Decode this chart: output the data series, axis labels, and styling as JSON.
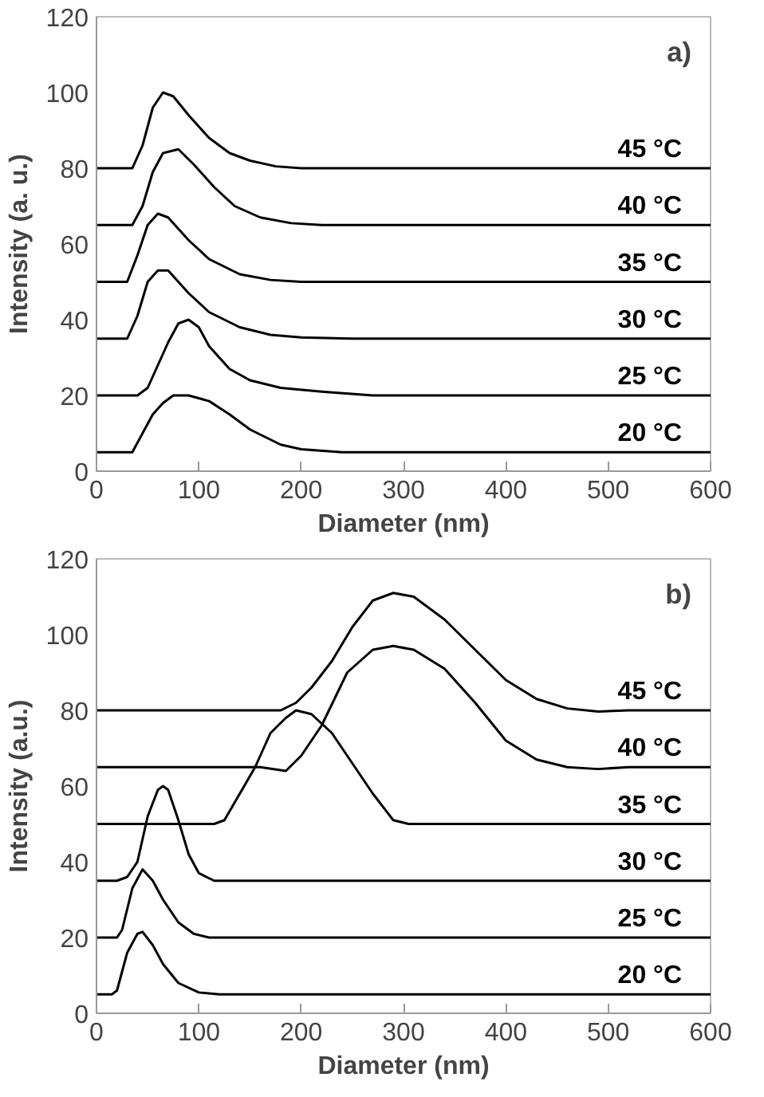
{
  "chart_data": [
    {
      "type": "line",
      "xlabel": "Diameter (nm)",
      "ylabel": "Intensity (a. u.)",
      "annotations": [
        "a)"
      ],
      "xlim": [
        0,
        600
      ],
      "ylim": [
        0,
        120
      ],
      "xticks": [
        0,
        100,
        200,
        300,
        400,
        500,
        600
      ],
      "yticks": [
        0,
        20,
        40,
        60,
        80,
        100,
        120
      ],
      "grid": false,
      "marker": "none",
      "line_style": "solid",
      "series": [
        {
          "name": "45 °C",
          "color": "#000000",
          "x": [
            0,
            35,
            45,
            55,
            65,
            75,
            90,
            110,
            130,
            150,
            175,
            200,
            600
          ],
          "values": [
            80,
            80,
            86,
            96,
            100,
            99,
            94,
            88,
            84,
            82,
            80.5,
            80,
            80
          ]
        },
        {
          "name": "40 °C",
          "color": "#000000",
          "x": [
            0,
            35,
            45,
            55,
            65,
            80,
            95,
            115,
            135,
            160,
            190,
            220,
            600
          ],
          "values": [
            65,
            65,
            70,
            79,
            84,
            85,
            81,
            75,
            70,
            67,
            65.5,
            65,
            65
          ]
        },
        {
          "name": "35 °C",
          "color": "#000000",
          "x": [
            0,
            30,
            40,
            50,
            60,
            70,
            90,
            110,
            140,
            170,
            200,
            600
          ],
          "values": [
            50,
            50,
            57,
            65,
            68,
            67,
            61,
            56,
            52,
            50.5,
            50,
            50
          ]
        },
        {
          "name": "30 °C",
          "color": "#000000",
          "x": [
            0,
            30,
            40,
            50,
            60,
            70,
            90,
            110,
            140,
            170,
            200,
            250,
            600
          ],
          "values": [
            35,
            35,
            41,
            50,
            53,
            53,
            47,
            42,
            38,
            36,
            35.3,
            35,
            35
          ]
        },
        {
          "name": "25 °C",
          "color": "#000000",
          "x": [
            0,
            40,
            50,
            60,
            70,
            80,
            90,
            100,
            110,
            130,
            150,
            180,
            220,
            270,
            600
          ],
          "values": [
            20,
            20,
            22,
            28,
            34,
            39,
            40,
            38,
            33,
            27,
            24,
            22,
            21,
            20,
            20
          ]
        },
        {
          "name": "20 °C",
          "color": "#000000",
          "x": [
            0,
            35,
            45,
            55,
            65,
            75,
            90,
            110,
            130,
            150,
            180,
            200,
            240,
            600
          ],
          "values": [
            5,
            5,
            10,
            15,
            18,
            20,
            20,
            18.5,
            15,
            11,
            7,
            5.8,
            5,
            5
          ]
        }
      ]
    },
    {
      "type": "line",
      "xlabel": "Diameter (nm)",
      "ylabel": "Intensity (a.u.)",
      "annotations": [
        "b)"
      ],
      "xlim": [
        0,
        600
      ],
      "ylim": [
        0,
        120
      ],
      "xticks": [
        0,
        100,
        200,
        300,
        400,
        500,
        600
      ],
      "yticks": [
        0,
        20,
        40,
        60,
        80,
        100,
        120
      ],
      "grid": false,
      "marker": "none",
      "line_style": "solid",
      "series": [
        {
          "name": "45 °C",
          "color": "#000000",
          "x": [
            0,
            165,
            180,
            195,
            210,
            230,
            250,
            270,
            290,
            310,
            340,
            370,
            400,
            430,
            460,
            490,
            520,
            600
          ],
          "values": [
            80,
            80,
            80,
            82,
            86,
            93,
            102,
            109,
            111,
            110,
            104,
            96,
            88,
            83,
            80.5,
            79.7,
            80,
            80
          ]
        },
        {
          "name": "40 °C",
          "color": "#000000",
          "x": [
            0,
            160,
            185,
            200,
            220,
            245,
            270,
            290,
            310,
            340,
            370,
            400,
            430,
            460,
            490,
            520,
            600
          ],
          "values": [
            65,
            65,
            64,
            68,
            76,
            90,
            96,
            97,
            96,
            91,
            82,
            72,
            67,
            65,
            64.5,
            65,
            65
          ]
        },
        {
          "name": "35 °C",
          "color": "#000000",
          "x": [
            0,
            115,
            125,
            140,
            155,
            170,
            185,
            195,
            210,
            230,
            250,
            270,
            290,
            305,
            600
          ],
          "values": [
            50,
            50,
            51,
            58,
            65,
            74,
            78,
            80,
            79,
            74,
            66,
            58,
            51,
            50,
            50
          ]
        },
        {
          "name": "30 °C",
          "color": "#000000",
          "x": [
            0,
            20,
            30,
            40,
            50,
            60,
            65,
            70,
            80,
            90,
            100,
            115,
            600
          ],
          "values": [
            35,
            35,
            36,
            40,
            52,
            59,
            60,
            59,
            51,
            42,
            37,
            35,
            35
          ]
        },
        {
          "name": "25 °C",
          "color": "#000000",
          "x": [
            0,
            20,
            25,
            35,
            45,
            55,
            65,
            80,
            95,
            110,
            600
          ],
          "values": [
            20,
            20,
            22,
            33,
            38,
            35,
            30,
            24,
            21,
            20,
            20
          ]
        },
        {
          "name": "20 °C",
          "color": "#000000",
          "x": [
            0,
            15,
            20,
            30,
            40,
            45,
            55,
            65,
            80,
            100,
            120,
            600
          ],
          "values": [
            5,
            5,
            6,
            16,
            21,
            21.5,
            18,
            13,
            8,
            5.5,
            5,
            5
          ]
        }
      ]
    }
  ]
}
